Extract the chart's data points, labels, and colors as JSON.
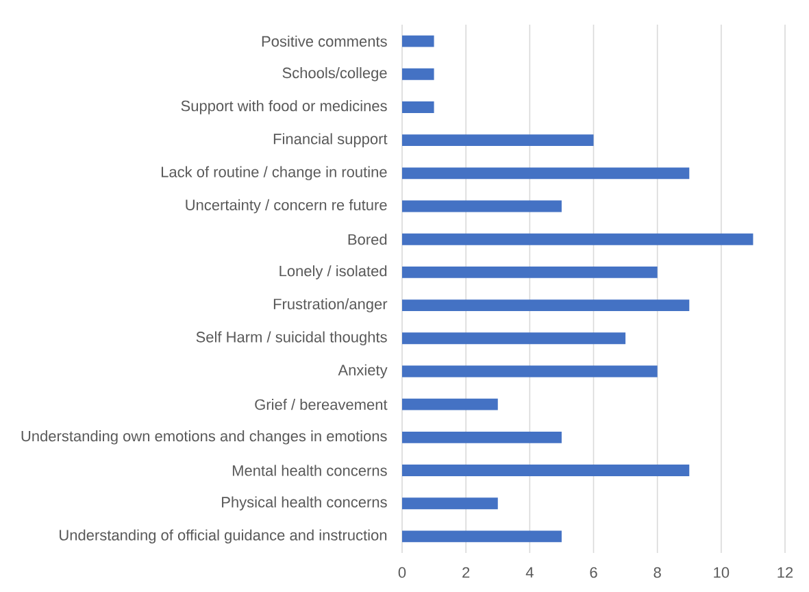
{
  "chart_data": {
    "type": "bar",
    "orientation": "horizontal",
    "categories": [
      "Positive comments",
      "Schools/college",
      "Support with food or medicines",
      "Financial support",
      "Lack of routine / change in routine",
      "Uncertainty / concern re future",
      "Bored",
      "Lonely / isolated",
      "Frustration/anger",
      "Self Harm / suicidal thoughts",
      "Anxiety",
      "Grief / bereavement",
      "Understanding own emotions and changes in emotions",
      "Mental health concerns",
      "Physical health concerns",
      "Understanding of official guidance and instruction"
    ],
    "values": [
      1,
      1,
      1,
      6,
      9,
      5,
      11,
      8,
      9,
      7,
      8,
      3,
      5,
      9,
      3,
      5
    ],
    "color": "#4472c4",
    "xlim": [
      0,
      12
    ],
    "xticks": [
      0,
      2,
      4,
      6,
      8,
      10,
      12
    ],
    "grid": "x"
  }
}
